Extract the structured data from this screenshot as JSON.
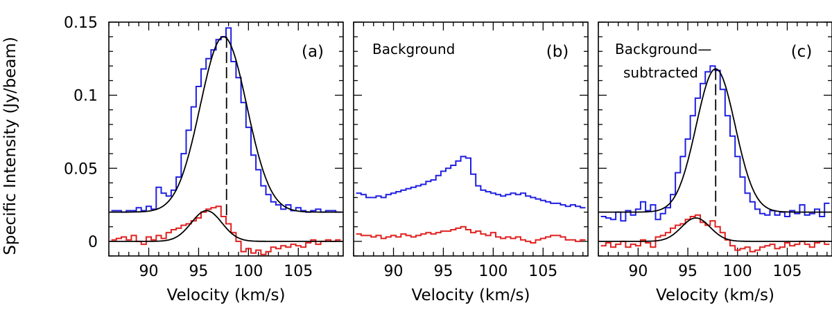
{
  "chart_data": [
    {
      "type": "line",
      "panel_label": "(a)",
      "annotation": "",
      "xlabel": "Velocity (km/s)",
      "ylabel": "Specific Intensity (Jy/beam)",
      "xlim": [
        86.0,
        109.5
      ],
      "ylim": [
        -0.01,
        0.15
      ],
      "xticks": [
        "90",
        "95",
        "100",
        "105"
      ],
      "yticks": [
        "0",
        "0.05",
        "0.1",
        "0.15"
      ],
      "dashed_line_x": 97.8,
      "series": [
        {
          "style": "step",
          "color": "#1f1fe0",
          "x": [
            86.5,
            87,
            87.5,
            88,
            88.5,
            89,
            89.5,
            90,
            90.5,
            91,
            91.5,
            92,
            92.5,
            93,
            93.5,
            94,
            94.5,
            95,
            95.5,
            96,
            96.5,
            97,
            97.5,
            98,
            98.5,
            99,
            99.5,
            100,
            100.5,
            101,
            101.5,
            102,
            102.5,
            103,
            103.5,
            104,
            104.5,
            105,
            105.5,
            106,
            106.5,
            107,
            107.5,
            108,
            108.5,
            109
          ],
          "y": [
            0.021,
            0.021,
            0.02,
            0.021,
            0.021,
            0.023,
            0.021,
            0.024,
            0.022,
            0.037,
            0.033,
            0.031,
            0.035,
            0.044,
            0.06,
            0.076,
            0.092,
            0.106,
            0.118,
            0.125,
            0.131,
            0.138,
            0.14,
            0.146,
            0.123,
            0.112,
            0.095,
            0.078,
            0.059,
            0.049,
            0.038,
            0.032,
            0.027,
            0.025,
            0.022,
            0.025,
            0.021,
            0.023,
            0.021,
            0.02,
            0.021,
            0.022,
            0.02,
            0.021,
            0.021,
            0.02
          ]
        },
        {
          "style": "smooth",
          "color": "#000000",
          "model": "gaussian",
          "baseline": 0.02,
          "amplitude": 0.12,
          "center": 97.5,
          "fwhm": 5.5
        },
        {
          "style": "step",
          "color": "#e01f1f",
          "x": [
            86.5,
            87,
            87.5,
            88,
            88.5,
            89,
            89.5,
            90,
            90.5,
            91,
            91.5,
            92,
            92.5,
            93,
            93.5,
            94,
            94.5,
            95,
            95.5,
            96,
            96.5,
            97,
            97.5,
            98,
            98.5,
            99,
            99.5,
            100,
            100.5,
            101,
            101.5,
            102,
            102.5,
            103,
            103.5,
            104,
            104.5,
            105,
            105.5,
            106,
            106.5,
            107,
            107.5,
            108,
            108.5,
            109
          ],
          "y": [
            0.001,
            0.002,
            0.003,
            0.001,
            0.004,
            0.0,
            -0.002,
            0.003,
            0.001,
            0.004,
            0.002,
            0.006,
            0.008,
            0.009,
            0.011,
            0.012,
            0.014,
            0.016,
            0.02,
            0.022,
            0.023,
            0.024,
            0.017,
            0.012,
            0.006,
            0.0,
            -0.007,
            -0.005,
            -0.008,
            -0.006,
            -0.009,
            -0.007,
            -0.004,
            -0.005,
            -0.003,
            -0.004,
            -0.002,
            -0.003,
            -0.004,
            -0.001,
            0.001,
            -0.002,
            0.0,
            0.001,
            0.0,
            0.001
          ]
        },
        {
          "style": "smooth",
          "color": "#000000",
          "model": "gaussian",
          "baseline": 0.0,
          "amplitude": 0.021,
          "center": 95.8,
          "fwhm": 3.6
        }
      ]
    },
    {
      "type": "line",
      "panel_label": "(b)",
      "annotation": "Background",
      "xlabel": "Velocity (km/s)",
      "ylabel": "",
      "xlim": [
        86.0,
        109.5
      ],
      "ylim": [
        -0.01,
        0.15
      ],
      "xticks": [
        "90",
        "95",
        "100",
        "105"
      ],
      "yticks": [],
      "dashed_line_x": null,
      "series": [
        {
          "style": "step",
          "color": "#1f1fe0",
          "x": [
            86.5,
            87,
            87.5,
            88,
            88.5,
            89,
            89.5,
            90,
            90.5,
            91,
            91.5,
            92,
            92.5,
            93,
            93.5,
            94,
            94.5,
            95,
            95.5,
            96,
            96.5,
            97,
            97.5,
            98,
            98.5,
            99,
            99.5,
            100,
            100.5,
            101,
            101.5,
            102,
            102.5,
            103,
            103.5,
            104,
            104.5,
            105,
            105.5,
            106,
            106.5,
            107,
            107.5,
            108,
            108.5,
            109
          ],
          "y": [
            0.033,
            0.032,
            0.03,
            0.03,
            0.031,
            0.03,
            0.032,
            0.033,
            0.034,
            0.035,
            0.036,
            0.037,
            0.038,
            0.039,
            0.041,
            0.042,
            0.045,
            0.048,
            0.05,
            0.052,
            0.055,
            0.058,
            0.057,
            0.046,
            0.038,
            0.035,
            0.034,
            0.033,
            0.032,
            0.031,
            0.032,
            0.033,
            0.032,
            0.033,
            0.031,
            0.03,
            0.029,
            0.028,
            0.027,
            0.026,
            0.026,
            0.025,
            0.024,
            0.025,
            0.024,
            0.023
          ]
        },
        {
          "style": "step",
          "color": "#e01f1f",
          "x": [
            86.5,
            87,
            87.5,
            88,
            88.5,
            89,
            89.5,
            90,
            90.5,
            91,
            91.5,
            92,
            92.5,
            93,
            93.5,
            94,
            94.5,
            95,
            95.5,
            96,
            96.5,
            97,
            97.5,
            98,
            98.5,
            99,
            99.5,
            100,
            100.5,
            101,
            101.5,
            102,
            102.5,
            103,
            103.5,
            104,
            104.5,
            105,
            105.5,
            106,
            106.5,
            107,
            107.5,
            108,
            108.5,
            109
          ],
          "y": [
            0.005,
            0.004,
            0.004,
            0.003,
            0.004,
            0.002,
            0.003,
            0.004,
            0.003,
            0.005,
            0.004,
            0.003,
            0.004,
            0.005,
            0.006,
            0.005,
            0.006,
            0.007,
            0.007,
            0.008,
            0.009,
            0.01,
            0.008,
            0.006,
            0.007,
            0.005,
            0.004,
            0.006,
            0.003,
            0.002,
            0.003,
            0.002,
            0.003,
            0.001,
            0.0,
            -0.001,
            0.001,
            0.002,
            0.003,
            0.004,
            0.004,
            0.003,
            0.001,
            0.001,
            0.0,
            0.001
          ]
        }
      ]
    },
    {
      "type": "line",
      "panel_label": "(c)",
      "annotation": "Background— subtracted",
      "annotation_lines": [
        "Background—",
        "subtracted"
      ],
      "xlabel": "Velocity (km/s)",
      "ylabel": "",
      "xlim": [
        86.0,
        109.5
      ],
      "ylim": [
        -0.01,
        0.15
      ],
      "xticks": [
        "90",
        "95",
        "100",
        "105"
      ],
      "yticks": [],
      "dashed_line_x": 97.8,
      "series": [
        {
          "style": "step",
          "color": "#1f1fe0",
          "x": [
            86.5,
            87,
            87.5,
            88,
            88.5,
            89,
            89.5,
            90,
            90.5,
            91,
            91.5,
            92,
            92.5,
            93,
            93.5,
            94,
            94.5,
            95,
            95.5,
            96,
            96.5,
            97,
            97.5,
            98,
            98.5,
            99,
            99.5,
            100,
            100.5,
            101,
            101.5,
            102,
            102.5,
            103,
            103.5,
            104,
            104.5,
            105,
            105.5,
            106,
            106.5,
            107,
            107.5,
            108,
            108.5,
            109
          ],
          "y": [
            0.017,
            0.016,
            0.015,
            0.02,
            0.014,
            0.021,
            0.018,
            0.022,
            0.027,
            0.021,
            0.025,
            0.015,
            0.019,
            0.023,
            0.032,
            0.047,
            0.058,
            0.07,
            0.086,
            0.098,
            0.108,
            0.116,
            0.12,
            0.117,
            0.104,
            0.086,
            0.072,
            0.058,
            0.044,
            0.033,
            0.027,
            0.022,
            0.019,
            0.018,
            0.021,
            0.018,
            0.02,
            0.017,
            0.021,
            0.019,
            0.025,
            0.018,
            0.019,
            0.022,
            0.017,
            0.026
          ]
        },
        {
          "style": "smooth",
          "color": "#000000",
          "model": "gaussian",
          "baseline": 0.02,
          "amplitude": 0.098,
          "center": 97.8,
          "fwhm": 4.6
        },
        {
          "style": "step",
          "color": "#e01f1f",
          "x": [
            86.5,
            87,
            87.5,
            88,
            88.5,
            89,
            89.5,
            90,
            90.5,
            91,
            91.5,
            92,
            92.5,
            93,
            93.5,
            94,
            94.5,
            95,
            95.5,
            96,
            96.5,
            97,
            97.5,
            98,
            98.5,
            99,
            99.5,
            100,
            100.5,
            101,
            101.5,
            102,
            102.5,
            103,
            103.5,
            104,
            104.5,
            105,
            105.5,
            106,
            106.5,
            107,
            107.5,
            108,
            108.5,
            109
          ],
          "y": [
            -0.003,
            -0.001,
            -0.004,
            -0.002,
            0.0,
            -0.004,
            -0.002,
            -0.003,
            0.001,
            -0.001,
            -0.004,
            0.003,
            0.004,
            0.006,
            0.009,
            0.011,
            0.012,
            0.015,
            0.017,
            0.018,
            0.013,
            0.011,
            0.014,
            0.01,
            0.006,
            0.001,
            -0.003,
            -0.006,
            -0.005,
            -0.004,
            -0.007,
            -0.006,
            -0.004,
            -0.003,
            -0.002,
            -0.005,
            -0.004,
            -0.001,
            -0.003,
            -0.002,
            0.0,
            -0.002,
            -0.004,
            -0.001,
            0.0,
            -0.002
          ]
        },
        {
          "style": "smooth",
          "color": "#000000",
          "model": "gaussian",
          "baseline": 0.0,
          "amplitude": 0.016,
          "center": 95.8,
          "fwhm": 3.4
        }
      ]
    }
  ]
}
